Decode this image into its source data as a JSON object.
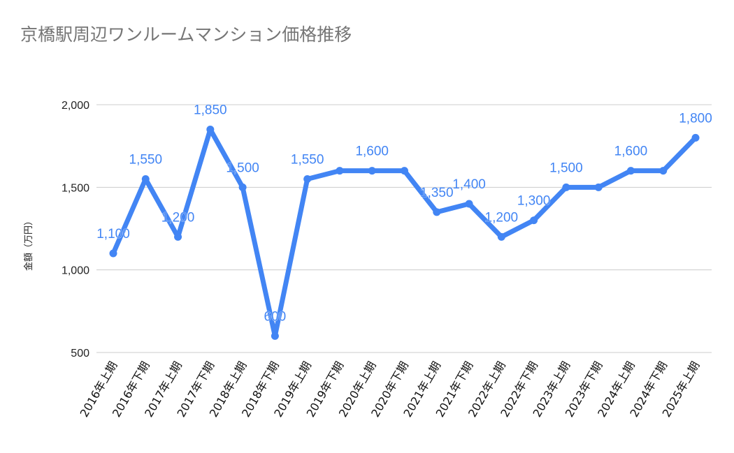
{
  "chart_data": {
    "type": "line",
    "title": "京橋駅周辺ワンルームマンション価格推移",
    "xlabel": "",
    "ylabel": "金額（万円）",
    "ylim": [
      500,
      2000
    ],
    "yticks": [
      "2,000",
      "1,500",
      "1,000",
      "500"
    ],
    "ytick_values": [
      2000,
      1500,
      1000,
      500
    ],
    "grid": true,
    "legend": "none",
    "categories": [
      "2016年上期",
      "2016年下期",
      "2017年上期",
      "2017年下期",
      "2018年上期",
      "2018年下期",
      "2019年上期",
      "2019年下期",
      "2020年上期",
      "2020年下期",
      "2021年上期",
      "2021年下期",
      "2022年上期",
      "2022年下期",
      "2023年上期",
      "2023年下期",
      "2024年上期",
      "2024年下期",
      "2025年上期"
    ],
    "series": [
      {
        "name": "金額（万円）",
        "color": "#4285f4",
        "values": [
          1100,
          1550,
          1200,
          1850,
          1500,
          600,
          1550,
          1600,
          1600,
          1600,
          1350,
          1400,
          1200,
          1300,
          1500,
          1500,
          1600,
          1600,
          1800
        ],
        "data_labels": [
          "1,100",
          "1,550",
          "1,200",
          "1,850",
          "1,500",
          "600",
          "1,550",
          "",
          "1,600",
          "",
          "1,350",
          "1,400",
          "1,200",
          "1,300",
          "1,500",
          "",
          "1,600",
          "",
          "1,800"
        ]
      }
    ]
  },
  "colors": {
    "line": "#4285f4",
    "grid": "#cccccc",
    "title": "#757575",
    "axis_text": "#222222"
  }
}
